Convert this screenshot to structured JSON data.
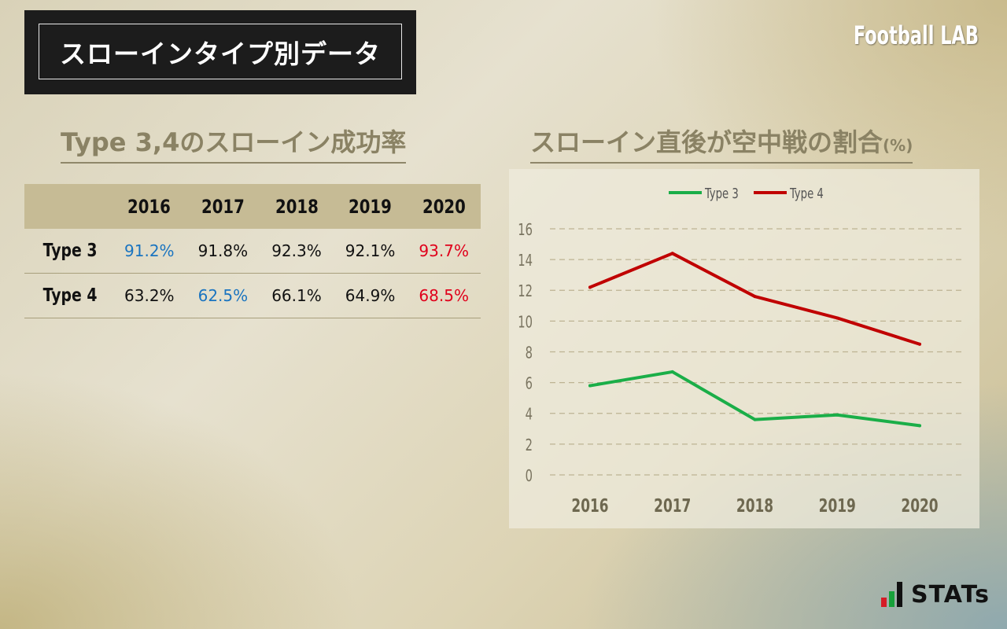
{
  "header": {
    "title": "スローインタイプ別データ",
    "brand": "Football LAB"
  },
  "left": {
    "section_title": "Type 3,4のスローイン成功率",
    "years": [
      "2016",
      "2017",
      "2018",
      "2019",
      "2020"
    ],
    "rows": [
      {
        "label": "Type 3",
        "values": [
          "91.2%",
          "91.8%",
          "92.3%",
          "92.1%",
          "93.7%"
        ],
        "highlight": [
          "blue",
          "",
          "",
          "",
          "red"
        ]
      },
      {
        "label": "Type 4",
        "values": [
          "63.2%",
          "62.5%",
          "66.1%",
          "64.9%",
          "68.5%"
        ],
        "highlight": [
          "",
          "blue",
          "",
          "",
          "red"
        ]
      }
    ],
    "colors": {
      "low": "#1a74c0",
      "high": "#e0001b"
    }
  },
  "right": {
    "section_title": "スローイン直後が空中戦の割合",
    "section_unit": "(%)"
  },
  "chart_data": {
    "type": "line",
    "categories": [
      "2016",
      "2017",
      "2018",
      "2019",
      "2020"
    ],
    "series": [
      {
        "name": "Type 3",
        "values": [
          5.8,
          6.7,
          3.6,
          3.9,
          3.2
        ],
        "color": "#1aae48"
      },
      {
        "name": "Type 4",
        "values": [
          12.2,
          14.4,
          11.6,
          10.2,
          8.5
        ],
        "color": "#c00000"
      }
    ],
    "ylim": [
      0,
      16
    ],
    "yticks": [
      0,
      2,
      4,
      6,
      8,
      10,
      12,
      14,
      16
    ],
    "grid": true,
    "legend": "top-center",
    "title": "",
    "xlabel": "",
    "ylabel": ""
  },
  "footer": {
    "logo_text": "STATs"
  }
}
